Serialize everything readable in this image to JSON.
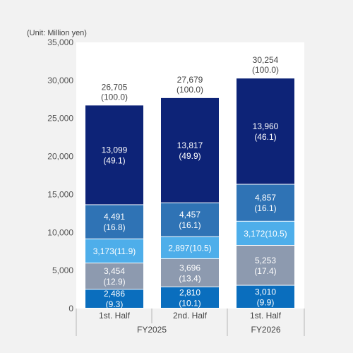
{
  "chart_data": {
    "type": "stacked-bar",
    "unit_label": "(Unit: Million yen)",
    "ylim": [
      0,
      35000
    ],
    "yticks": [
      "0",
      "5,000",
      "10,000",
      "15,000",
      "20,000",
      "25,000",
      "30,000",
      "35,000"
    ],
    "ytick_values": [
      0,
      5000,
      10000,
      15000,
      20000,
      25000,
      30000,
      35000
    ],
    "grid": false,
    "categories": [
      "1st. Half",
      "2nd. Half",
      "1st. Half"
    ],
    "groups": [
      {
        "label": "FY2025",
        "categories": [
          0,
          1
        ]
      },
      {
        "label": "FY2026",
        "categories": [
          2
        ]
      }
    ],
    "totals": [
      {
        "value": 26705,
        "line1": "26,705",
        "line2": "(100.0)"
      },
      {
        "value": 27679,
        "line1": "27,679",
        "line2": "(100.0)"
      },
      {
        "value": 30254,
        "line1": "30,254",
        "line2": "(100.0)"
      }
    ],
    "series": [
      {
        "color": "#0a6ebe",
        "values": [
          2486,
          2810,
          3010
        ],
        "labels": [
          [
            "2,486",
            "(9.3)"
          ],
          [
            "2,810",
            "(10.1)"
          ],
          [
            "3,010",
            "(9.9)"
          ]
        ]
      },
      {
        "color": "#8d9aaf",
        "values": [
          3454,
          3696,
          5253
        ],
        "labels": [
          [
            "3,454",
            "(12.9)"
          ],
          [
            "3,696",
            "(13.4)"
          ],
          [
            "5,253",
            "(17.4)"
          ]
        ]
      },
      {
        "color": "#4eaeea",
        "values": [
          3173,
          2897,
          3172
        ],
        "labels": [
          [
            "3,173(11.9)"
          ],
          [
            "2,897(10.5)"
          ],
          [
            "3,172(10.5)"
          ]
        ]
      },
      {
        "color": "#2f73b5",
        "values": [
          4491,
          4457,
          4857
        ],
        "labels": [
          [
            "4,491",
            "(16.8)"
          ],
          [
            "4,457",
            "(16.1)"
          ],
          [
            "4,857",
            "(16.1)"
          ]
        ]
      },
      {
        "color": "#0d2377",
        "values": [
          13099,
          13817,
          13960
        ],
        "labels": [
          [
            "13,099",
            "(49.1)"
          ],
          [
            "13,817",
            "(49.9)"
          ],
          [
            "13,960",
            "(46.1)"
          ]
        ]
      }
    ]
  }
}
